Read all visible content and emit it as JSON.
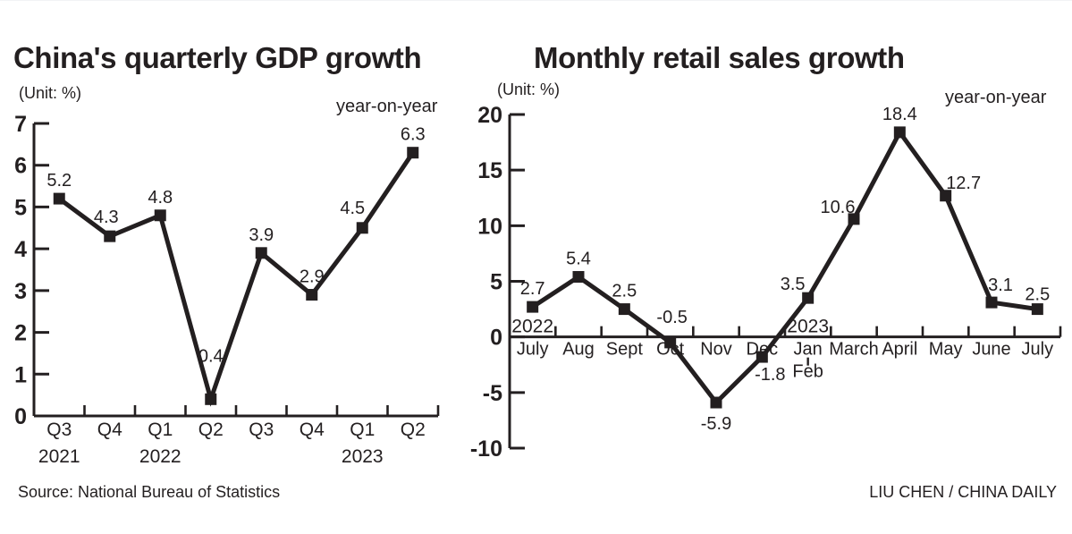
{
  "page": {
    "background": "#ffffff",
    "ink": "#231f20"
  },
  "footer": {
    "source": "Source: National Bureau of Statistics",
    "credit": "LIU CHEN / CHINA DAILY"
  },
  "chart_data": [
    {
      "type": "line",
      "title": "China's quarterly GDP growth",
      "unit_label": "(Unit: %)",
      "legend": "year-on-year",
      "categories": [
        "Q3",
        "Q4",
        "Q1",
        "Q2",
        "Q3",
        "Q4",
        "Q1",
        "Q2"
      ],
      "year_labels": [
        {
          "text": "2021",
          "index": 0
        },
        {
          "text": "2022",
          "index": 2
        },
        {
          "text": "2023",
          "index": 6
        }
      ],
      "values": [
        5.2,
        4.3,
        4.8,
        0.4,
        3.9,
        2.9,
        4.5,
        6.3
      ],
      "ylim": [
        0,
        7
      ],
      "yticks": [
        0,
        1,
        2,
        3,
        4,
        5,
        6,
        7
      ],
      "grid": false,
      "legend_position": "top-right",
      "line_color": "#231f20",
      "label_offsets": {
        "1": [
          -4,
          -15
        ],
        "3": [
          0,
          -42
        ],
        "6": [
          -11,
          -16
        ]
      }
    },
    {
      "type": "line",
      "title": "Monthly retail sales growth",
      "unit_label": "(Unit: %)",
      "legend": "year-on-year",
      "categories": [
        "July",
        "Aug",
        "Sept",
        "Oct",
        "Nov",
        "Dec",
        "Jan",
        "March",
        "April",
        "May",
        "June",
        "July"
      ],
      "sub_labels": [
        {
          "text": "Feb",
          "index": 6
        }
      ],
      "year_labels": [
        {
          "text": "2022",
          "index": 0
        },
        {
          "text": "2023",
          "index": 6
        }
      ],
      "values": [
        2.7,
        5.4,
        2.5,
        -0.5,
        -5.9,
        -1.8,
        3.5,
        10.6,
        18.4,
        12.7,
        3.1,
        2.5
      ],
      "ylim": [
        -10,
        20
      ],
      "yticks": [
        -10,
        -5,
        0,
        5,
        10,
        15,
        20
      ],
      "grid": false,
      "legend_position": "top-right",
      "line_color": "#231f20",
      "label_offsets": {
        "3": [
          2,
          -22
        ],
        "4": [
          0,
          30
        ],
        "5": [
          9,
          26
        ],
        "6": [
          -17,
          -9
        ],
        "7": [
          -18,
          -7
        ],
        "9": [
          20,
          -8
        ],
        "10": [
          10,
          -13
        ],
        "11": [
          0,
          -10
        ]
      }
    }
  ]
}
